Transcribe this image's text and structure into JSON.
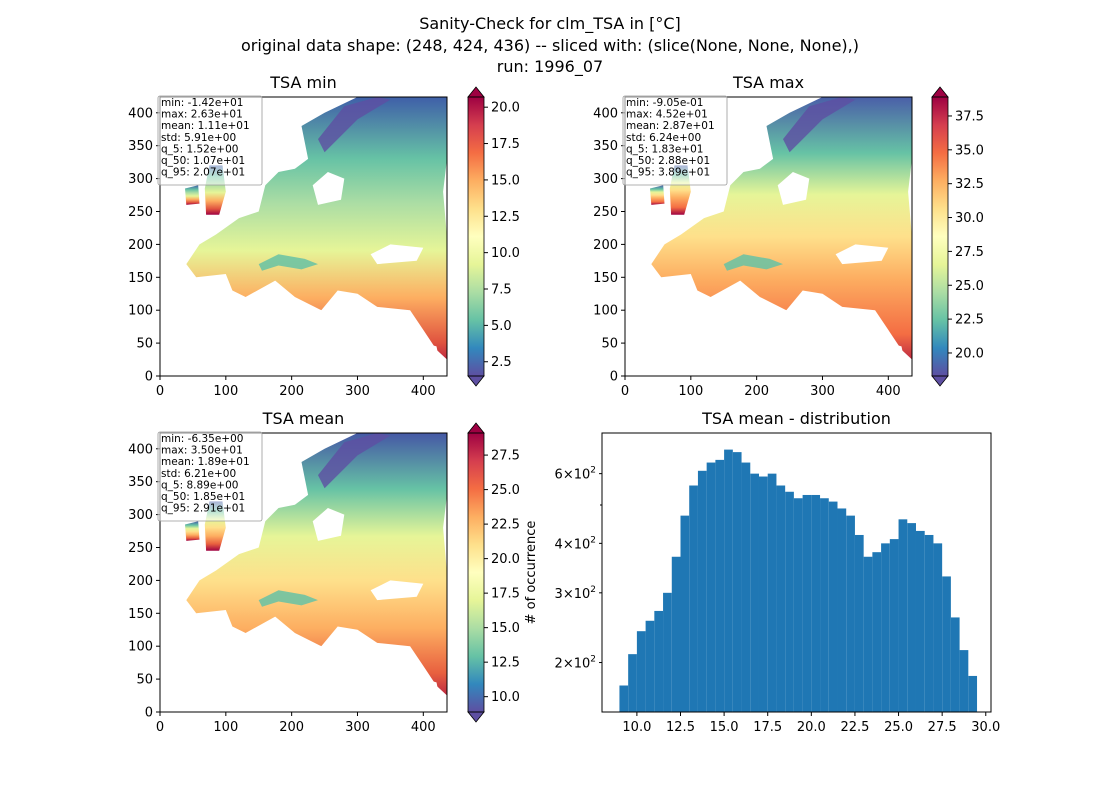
{
  "figure": {
    "title_lines": [
      "Sanity-Check for clm_TSA in [°C]",
      "original data shape: (248, 424, 436) -- sliced with: (slice(None, None, None),)",
      "run: 1996_07"
    ]
  },
  "colors": {
    "spectral_r": [
      "#5e4fa2",
      "#3288bd",
      "#66c2a5",
      "#abdda4",
      "#e6f598",
      "#ffffbf",
      "#fee08b",
      "#fdae61",
      "#f46d43",
      "#d53e4f",
      "#9e0142"
    ],
    "histogram_bar": "#1f77b4",
    "land_mask_hint": "#ffffff"
  },
  "chart_data": [
    {
      "type": "heatmap",
      "title": "TSA min",
      "x_ticks": [
        "0",
        "100",
        "200",
        "300",
        "400"
      ],
      "y_ticks": [
        "0",
        "50",
        "100",
        "150",
        "200",
        "250",
        "300",
        "350",
        "400"
      ],
      "xlim": [
        0,
        436
      ],
      "ylim": [
        0,
        424
      ],
      "colormap": "Spectral_r",
      "colorbar_range": [
        1.52,
        20.7
      ],
      "colorbar_extend": "both",
      "colorbar_ticks": [
        "2.5",
        "5.0",
        "7.5",
        "10.0",
        "12.5",
        "15.0",
        "17.5",
        "20.0"
      ],
      "stats": [
        "min: -1.42e+01",
        "max: 2.63e+01",
        "mean: 1.11e+01",
        "std: 5.91e+00",
        "q_5: 1.52e+00",
        "q_50: 1.07e+01",
        "q_95: 2.07e+01"
      ]
    },
    {
      "type": "heatmap",
      "title": "TSA max",
      "x_ticks": [
        "0",
        "100",
        "200",
        "300",
        "400"
      ],
      "y_ticks": [
        "0",
        "50",
        "100",
        "150",
        "200",
        "250",
        "300",
        "350",
        "400"
      ],
      "xlim": [
        0,
        436
      ],
      "ylim": [
        0,
        424
      ],
      "colormap": "Spectral_r",
      "colorbar_range": [
        18.3,
        38.9
      ],
      "colorbar_extend": "both",
      "colorbar_ticks": [
        "20.0",
        "22.5",
        "25.0",
        "27.5",
        "30.0",
        "32.5",
        "35.0",
        "37.5"
      ],
      "stats": [
        "min: -9.05e-01",
        "max: 4.52e+01",
        "mean: 2.87e+01",
        "std: 6.24e+00",
        "q_5: 1.83e+01",
        "q_50: 2.88e+01",
        "q_95: 3.89e+01"
      ]
    },
    {
      "type": "heatmap",
      "title": "TSA mean",
      "x_ticks": [
        "0",
        "100",
        "200",
        "300",
        "400"
      ],
      "y_ticks": [
        "0",
        "50",
        "100",
        "150",
        "200",
        "250",
        "300",
        "350",
        "400"
      ],
      "xlim": [
        0,
        436
      ],
      "ylim": [
        0,
        424
      ],
      "colormap": "Spectral_r",
      "colorbar_range": [
        8.89,
        29.1
      ],
      "colorbar_extend": "both",
      "colorbar_ticks": [
        "10.0",
        "12.5",
        "15.0",
        "17.5",
        "20.0",
        "22.5",
        "25.0",
        "27.5"
      ],
      "stats": [
        "min: -6.35e+00",
        "max: 3.50e+01",
        "mean: 1.89e+01",
        "std: 6.21e+00",
        "q_5: 8.89e+00",
        "q_50: 1.85e+01",
        "q_95: 2.91e+01"
      ]
    },
    {
      "type": "bar",
      "title": "TSA mean - distribution",
      "ylabel": "# of occurrence",
      "yscale": "log",
      "xlim": [
        8.0,
        30.3
      ],
      "ylim": [
        150,
        760
      ],
      "x_ticks": [
        "10.0",
        "12.5",
        "15.0",
        "17.5",
        "20.0",
        "22.5",
        "25.0",
        "27.5",
        "30.0"
      ],
      "y_ticks": [
        {
          "value": 200,
          "mant": "2",
          "exp": "2"
        },
        {
          "value": 300,
          "mant": "3",
          "exp": "2"
        },
        {
          "value": 400,
          "mant": "4",
          "exp": "2"
        },
        {
          "value": 600,
          "mant": "6",
          "exp": "2"
        }
      ],
      "y_minor_ticks": [
        500
      ],
      "x": [
        9.0,
        9.5,
        10.0,
        10.5,
        11.0,
        11.5,
        12.0,
        12.5,
        13.0,
        13.5,
        14.0,
        14.5,
        15.0,
        15.5,
        16.0,
        16.5,
        17.0,
        17.5,
        18.0,
        18.5,
        19.0,
        19.5,
        20.0,
        20.5,
        21.0,
        21.5,
        22.0,
        22.5,
        23.0,
        23.5,
        24.0,
        24.5,
        25.0,
        25.5,
        26.0,
        26.5,
        27.0,
        27.5,
        28.0,
        28.5,
        29.0
      ],
      "values": [
        175,
        210,
        240,
        255,
        270,
        300,
        370,
        470,
        560,
        610,
        640,
        650,
        690,
        680,
        640,
        600,
        590,
        600,
        560,
        540,
        520,
        530,
        530,
        520,
        510,
        490,
        470,
        420,
        370,
        380,
        400,
        410,
        460,
        450,
        430,
        420,
        400,
        330,
        260,
        215,
        185
      ]
    }
  ]
}
